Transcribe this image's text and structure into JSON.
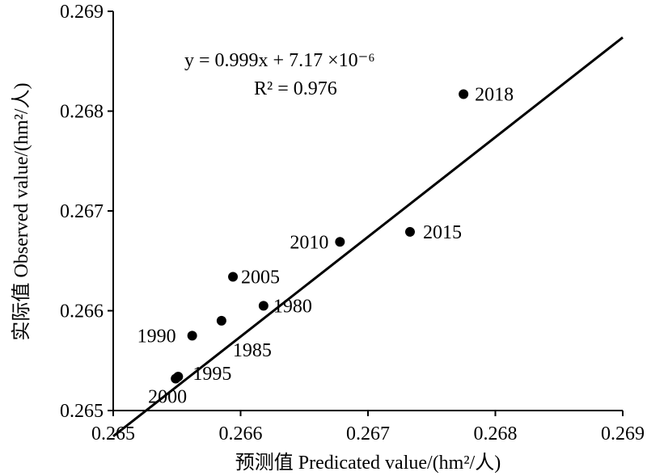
{
  "chart_data": {
    "type": "scatter",
    "title": "",
    "xlabel": "预测值 Predicated value/(hm²/人)",
    "ylabel": "实际值 Observed value/(hm²/人)",
    "xlim": [
      0.265,
      0.269
    ],
    "ylim": [
      0.265,
      0.269
    ],
    "xticks": [
      "0.265",
      "0.266",
      "0.267",
      "0.268",
      "0.269"
    ],
    "yticks": [
      "0.265",
      "0.266",
      "0.267",
      "0.268",
      "0.269"
    ],
    "grid": false,
    "legend": "none",
    "points": [
      {
        "label": "1980",
        "x": 0.26618,
        "y": 0.26605
      },
      {
        "label": "1985",
        "x": 0.26585,
        "y": 0.2659
      },
      {
        "label": "1990",
        "x": 0.26562,
        "y": 0.26575
      },
      {
        "label": "1995",
        "x": 0.26551,
        "y": 0.26534
      },
      {
        "label": "2000",
        "x": 0.26549,
        "y": 0.26532
      },
      {
        "label": "2005",
        "x": 0.26594,
        "y": 0.26634
      },
      {
        "label": "2010",
        "x": 0.26678,
        "y": 0.26669
      },
      {
        "label": "2015",
        "x": 0.26733,
        "y": 0.26679
      },
      {
        "label": "2018",
        "x": 0.26775,
        "y": 0.26817
      }
    ],
    "fit_line": {
      "slope": 0.999,
      "intercept": 7.17e-06
    },
    "equation": "y = 0.999x + 7.17 ×10⁻⁶",
    "r_squared_text": "R² = 0.976"
  }
}
